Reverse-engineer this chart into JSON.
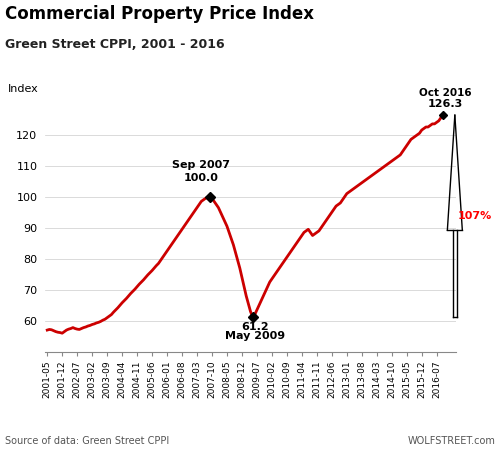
{
  "title": "Commercial Property Price Index",
  "subtitle": "Green Street CPPI, 2001 - 2016",
  "ylabel": "Index",
  "source_left": "Source of data: Green Street CPPI",
  "source_right": "WOLFSTREET.com",
  "line_color": "#CC0000",
  "background_color": "#ffffff",
  "ylim": [
    50,
    130
  ],
  "yticks": [
    60,
    70,
    80,
    90,
    100,
    110,
    120
  ],
  "tick_labels": [
    "2001-05",
    "2001-12",
    "2002-07",
    "2003-02",
    "2003-09",
    "2004-04",
    "2004-11",
    "2005-06",
    "2006-01",
    "2006-08",
    "2007-03",
    "2007-10",
    "2008-05",
    "2008-12",
    "2009-07",
    "2010-02",
    "2010-09",
    "2011-04",
    "2011-11",
    "2012-06",
    "2013-01",
    "2013-08",
    "2014-03",
    "2014-10",
    "2015-05",
    "2015-12",
    "2016-07"
  ],
  "data": [
    [
      "2001-05",
      57.0
    ],
    [
      "2001-06",
      57.2
    ],
    [
      "2001-07",
      57.1
    ],
    [
      "2001-08",
      56.8
    ],
    [
      "2001-09",
      56.5
    ],
    [
      "2001-10",
      56.3
    ],
    [
      "2001-11",
      56.2
    ],
    [
      "2001-12",
      56.0
    ],
    [
      "2002-01",
      56.5
    ],
    [
      "2002-02",
      57.0
    ],
    [
      "2002-03",
      57.3
    ],
    [
      "2002-04",
      57.5
    ],
    [
      "2002-05",
      57.8
    ],
    [
      "2002-06",
      57.5
    ],
    [
      "2002-07",
      57.3
    ],
    [
      "2002-08",
      57.2
    ],
    [
      "2002-09",
      57.5
    ],
    [
      "2002-10",
      57.8
    ],
    [
      "2002-11",
      58.0
    ],
    [
      "2002-12",
      58.3
    ],
    [
      "2003-01",
      58.5
    ],
    [
      "2003-02",
      58.8
    ],
    [
      "2003-03",
      59.0
    ],
    [
      "2003-04",
      59.3
    ],
    [
      "2003-05",
      59.5
    ],
    [
      "2003-06",
      59.8
    ],
    [
      "2003-07",
      60.2
    ],
    [
      "2003-08",
      60.5
    ],
    [
      "2003-09",
      61.0
    ],
    [
      "2003-10",
      61.5
    ],
    [
      "2003-11",
      62.0
    ],
    [
      "2003-12",
      62.8
    ],
    [
      "2004-01",
      63.5
    ],
    [
      "2004-02",
      64.2
    ],
    [
      "2004-03",
      65.0
    ],
    [
      "2004-04",
      65.8
    ],
    [
      "2004-05",
      66.5
    ],
    [
      "2004-06",
      67.2
    ],
    [
      "2004-07",
      68.0
    ],
    [
      "2004-08",
      68.8
    ],
    [
      "2004-09",
      69.5
    ],
    [
      "2004-10",
      70.2
    ],
    [
      "2004-11",
      71.0
    ],
    [
      "2004-12",
      71.8
    ],
    [
      "2005-01",
      72.5
    ],
    [
      "2005-02",
      73.2
    ],
    [
      "2005-03",
      74.0
    ],
    [
      "2005-04",
      74.8
    ],
    [
      "2005-05",
      75.5
    ],
    [
      "2005-06",
      76.2
    ],
    [
      "2005-07",
      77.0
    ],
    [
      "2005-08",
      77.8
    ],
    [
      "2005-09",
      78.5
    ],
    [
      "2005-10",
      79.5
    ],
    [
      "2005-11",
      80.5
    ],
    [
      "2005-12",
      81.5
    ],
    [
      "2006-01",
      82.5
    ],
    [
      "2006-02",
      83.5
    ],
    [
      "2006-03",
      84.5
    ],
    [
      "2006-04",
      85.5
    ],
    [
      "2006-05",
      86.5
    ],
    [
      "2006-06",
      87.5
    ],
    [
      "2006-07",
      88.5
    ],
    [
      "2006-08",
      89.5
    ],
    [
      "2006-09",
      90.5
    ],
    [
      "2006-10",
      91.5
    ],
    [
      "2006-11",
      92.5
    ],
    [
      "2006-12",
      93.5
    ],
    [
      "2007-01",
      94.5
    ],
    [
      "2007-02",
      95.5
    ],
    [
      "2007-03",
      96.5
    ],
    [
      "2007-04",
      97.5
    ],
    [
      "2007-05",
      98.5
    ],
    [
      "2007-06",
      99.0
    ],
    [
      "2007-07",
      99.5
    ],
    [
      "2007-08",
      99.8
    ],
    [
      "2007-09",
      100.0
    ],
    [
      "2007-10",
      99.5
    ],
    [
      "2007-11",
      98.5
    ],
    [
      "2007-12",
      97.5
    ],
    [
      "2008-01",
      96.5
    ],
    [
      "2008-02",
      95.0
    ],
    [
      "2008-03",
      93.5
    ],
    [
      "2008-04",
      92.0
    ],
    [
      "2008-05",
      90.5
    ],
    [
      "2008-06",
      88.5
    ],
    [
      "2008-07",
      86.5
    ],
    [
      "2008-08",
      84.5
    ],
    [
      "2008-09",
      82.0
    ],
    [
      "2008-10",
      79.5
    ],
    [
      "2008-11",
      77.0
    ],
    [
      "2008-12",
      74.0
    ],
    [
      "2009-01",
      71.0
    ],
    [
      "2009-02",
      68.0
    ],
    [
      "2009-03",
      65.5
    ],
    [
      "2009-04",
      63.0
    ],
    [
      "2009-05",
      61.2
    ],
    [
      "2009-06",
      62.0
    ],
    [
      "2009-07",
      63.5
    ],
    [
      "2009-08",
      65.0
    ],
    [
      "2009-09",
      66.5
    ],
    [
      "2009-10",
      68.0
    ],
    [
      "2009-11",
      69.5
    ],
    [
      "2009-12",
      71.0
    ],
    [
      "2010-01",
      72.5
    ],
    [
      "2010-02",
      73.5
    ],
    [
      "2010-03",
      74.5
    ],
    [
      "2010-04",
      75.5
    ],
    [
      "2010-05",
      76.5
    ],
    [
      "2010-06",
      77.5
    ],
    [
      "2010-07",
      78.5
    ],
    [
      "2010-08",
      79.5
    ],
    [
      "2010-09",
      80.5
    ],
    [
      "2010-10",
      81.5
    ],
    [
      "2010-11",
      82.5
    ],
    [
      "2010-12",
      83.5
    ],
    [
      "2011-01",
      84.5
    ],
    [
      "2011-02",
      85.5
    ],
    [
      "2011-03",
      86.5
    ],
    [
      "2011-04",
      87.5
    ],
    [
      "2011-05",
      88.5
    ],
    [
      "2011-06",
      89.0
    ],
    [
      "2011-07",
      89.5
    ],
    [
      "2011-08",
      88.5
    ],
    [
      "2011-09",
      87.5
    ],
    [
      "2011-10",
      88.0
    ],
    [
      "2011-11",
      88.5
    ],
    [
      "2011-12",
      89.0
    ],
    [
      "2012-01",
      90.0
    ],
    [
      "2012-02",
      91.0
    ],
    [
      "2012-03",
      92.0
    ],
    [
      "2012-04",
      93.0
    ],
    [
      "2012-05",
      94.0
    ],
    [
      "2012-06",
      95.0
    ],
    [
      "2012-07",
      96.0
    ],
    [
      "2012-08",
      97.0
    ],
    [
      "2012-09",
      97.5
    ],
    [
      "2012-10",
      98.0
    ],
    [
      "2012-11",
      99.0
    ],
    [
      "2012-12",
      100.0
    ],
    [
      "2013-01",
      101.0
    ],
    [
      "2013-02",
      101.5
    ],
    [
      "2013-03",
      102.0
    ],
    [
      "2013-04",
      102.5
    ],
    [
      "2013-05",
      103.0
    ],
    [
      "2013-06",
      103.5
    ],
    [
      "2013-07",
      104.0
    ],
    [
      "2013-08",
      104.5
    ],
    [
      "2013-09",
      105.0
    ],
    [
      "2013-10",
      105.5
    ],
    [
      "2013-11",
      106.0
    ],
    [
      "2013-12",
      106.5
    ],
    [
      "2014-01",
      107.0
    ],
    [
      "2014-02",
      107.5
    ],
    [
      "2014-03",
      108.0
    ],
    [
      "2014-04",
      108.5
    ],
    [
      "2014-05",
      109.0
    ],
    [
      "2014-06",
      109.5
    ],
    [
      "2014-07",
      110.0
    ],
    [
      "2014-08",
      110.5
    ],
    [
      "2014-09",
      111.0
    ],
    [
      "2014-10",
      111.5
    ],
    [
      "2014-11",
      112.0
    ],
    [
      "2014-12",
      112.5
    ],
    [
      "2015-01",
      113.0
    ],
    [
      "2015-02",
      113.5
    ],
    [
      "2015-03",
      114.5
    ],
    [
      "2015-04",
      115.5
    ],
    [
      "2015-05",
      116.5
    ],
    [
      "2015-06",
      117.5
    ],
    [
      "2015-07",
      118.5
    ],
    [
      "2015-08",
      119.0
    ],
    [
      "2015-09",
      119.5
    ],
    [
      "2015-10",
      120.0
    ],
    [
      "2015-11",
      120.5
    ],
    [
      "2015-12",
      121.5
    ],
    [
      "2016-01",
      122.0
    ],
    [
      "2016-02",
      122.5
    ],
    [
      "2016-03",
      122.5
    ],
    [
      "2016-04",
      123.0
    ],
    [
      "2016-05",
      123.5
    ],
    [
      "2016-06",
      123.5
    ],
    [
      "2016-07",
      124.0
    ],
    [
      "2016-08",
      124.5
    ],
    [
      "2016-09",
      125.5
    ],
    [
      "2016-10",
      126.3
    ]
  ]
}
